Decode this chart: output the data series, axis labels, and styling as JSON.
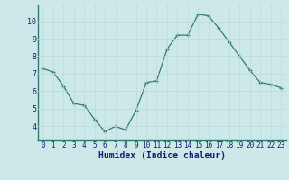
{
  "x": [
    0,
    1,
    2,
    3,
    4,
    5,
    6,
    7,
    8,
    9,
    10,
    11,
    12,
    13,
    14,
    15,
    16,
    17,
    18,
    19,
    20,
    21,
    22,
    23
  ],
  "y": [
    7.3,
    7.1,
    6.3,
    5.3,
    5.2,
    4.4,
    3.7,
    4.0,
    3.8,
    4.9,
    6.5,
    6.6,
    8.4,
    9.2,
    9.2,
    10.4,
    10.3,
    9.6,
    8.8,
    8.0,
    7.2,
    6.5,
    6.4,
    6.2
  ],
  "xlabel": "Humidex (Indice chaleur)",
  "ylim": [
    3.2,
    10.9
  ],
  "xlim": [
    -0.5,
    23.5
  ],
  "yticks": [
    4,
    5,
    6,
    7,
    8,
    9,
    10
  ],
  "xticks": [
    0,
    1,
    2,
    3,
    4,
    5,
    6,
    7,
    8,
    9,
    10,
    11,
    12,
    13,
    14,
    15,
    16,
    17,
    18,
    19,
    20,
    21,
    22,
    23
  ],
  "line_color": "#2d7d6e",
  "marker_color": "#2d7d6e",
  "bg_color": "#cce8e8",
  "grid_color": "#c0d8d8",
  "xlabel_color": "#1a1a6e",
  "tick_color": "#1a1a6e",
  "tick_fontsize": 5.5,
  "xlabel_fontsize": 7.0
}
